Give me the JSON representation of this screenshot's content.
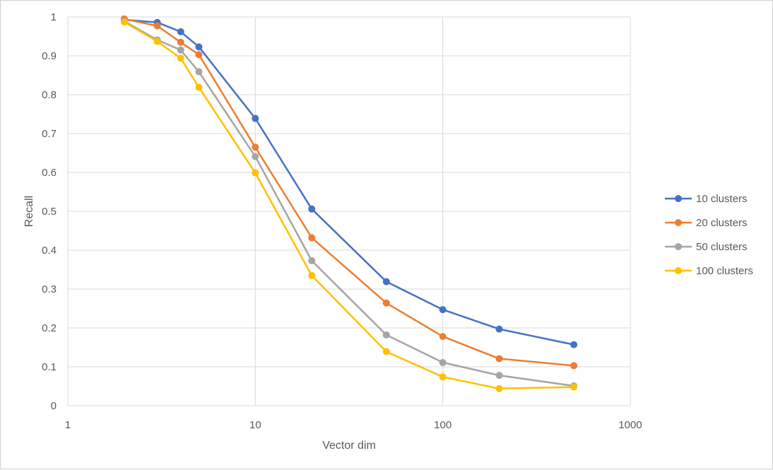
{
  "chart_data": {
    "type": "line",
    "title": "",
    "xlabel": "Vector dim",
    "ylabel": "Recall",
    "x_scale": "log",
    "xlim": [
      1,
      1000
    ],
    "ylim": [
      0,
      1
    ],
    "x_ticks": [
      "1",
      "10",
      "100",
      "1000"
    ],
    "y_ticks": [
      "0",
      "0.1",
      "0.2",
      "0.3",
      "0.4",
      "0.5",
      "0.6",
      "0.7",
      "0.8",
      "0.9",
      "1"
    ],
    "grid": true,
    "legend_position": "right",
    "x": [
      2,
      3,
      4,
      5,
      10,
      20,
      50,
      100,
      200,
      500
    ],
    "series": [
      {
        "name": "10 clusters",
        "color": "#4472C4",
        "values": [
          0.993,
          0.986,
          0.962,
          0.923,
          0.739,
          0.506,
          0.319,
          0.247,
          0.197,
          0.157
        ]
      },
      {
        "name": "20 clusters",
        "color": "#ED7D31",
        "values": [
          0.995,
          0.977,
          0.935,
          0.903,
          0.665,
          0.432,
          0.264,
          0.178,
          0.121,
          0.103
        ]
      },
      {
        "name": "50 clusters",
        "color": "#A5A5A5",
        "values": [
          0.989,
          0.941,
          0.915,
          0.859,
          0.641,
          0.373,
          0.182,
          0.111,
          0.078,
          0.051
        ]
      },
      {
        "name": "100 clusters",
        "color": "#FFC000",
        "values": [
          0.987,
          0.937,
          0.894,
          0.819,
          0.599,
          0.335,
          0.139,
          0.074,
          0.044,
          0.048
        ]
      }
    ]
  }
}
